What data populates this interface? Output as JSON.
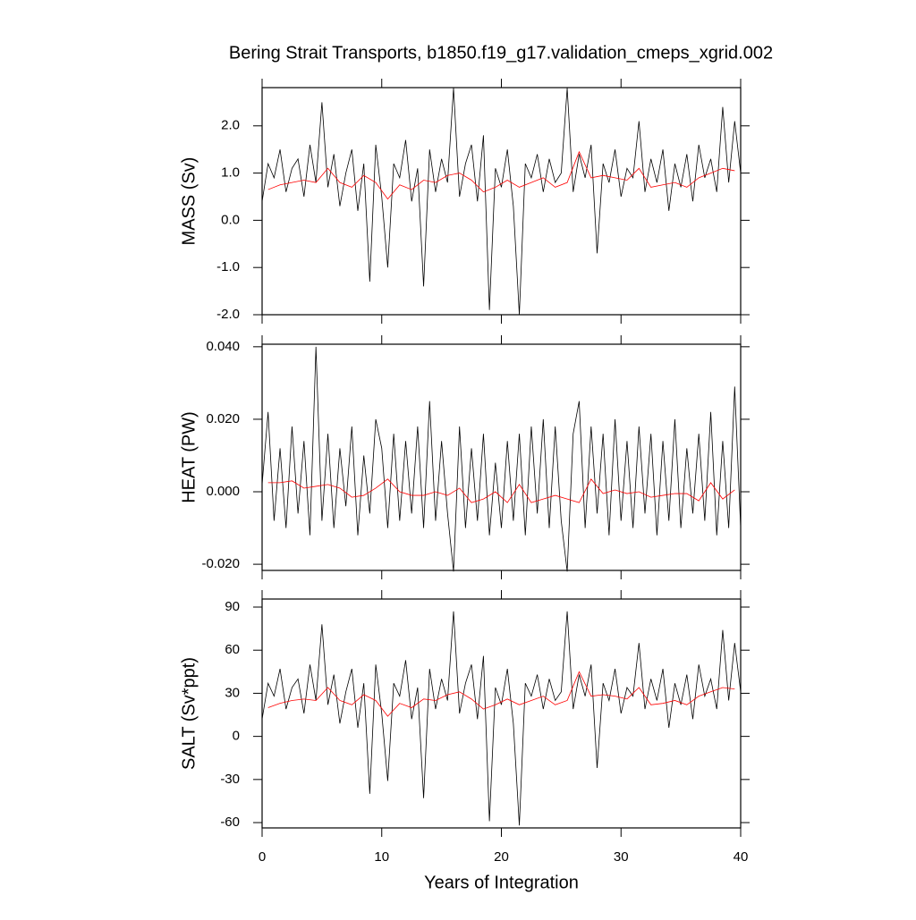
{
  "chart_data": [
    {
      "type": "line",
      "title": "Bering Strait Transports, b1850.f19_g17.validation_cmeps_xgrid.002",
      "y_label": "MASS (Sv)",
      "xlim": [
        0,
        40
      ],
      "xticks": [
        0,
        10,
        20,
        30,
        40
      ],
      "ylim": [
        -2,
        2.81
      ],
      "yticks": [
        {
          "value": 2,
          "label": "2.0"
        },
        {
          "value": 1,
          "label": "1.0"
        },
        {
          "value": 0,
          "label": "0.0"
        },
        {
          "value": -1,
          "label": "-1.0"
        },
        {
          "value": -2,
          "label": "-2.0"
        }
      ],
      "series": [
        {
          "color": "#000000",
          "x": [
            0,
            0.5,
            1,
            1.5,
            2,
            2.5,
            3,
            3.5,
            4,
            4.5,
            5,
            5.5,
            6,
            6.5,
            7,
            7.5,
            8,
            8.5,
            9,
            9.5,
            10,
            10.5,
            11,
            11.5,
            12,
            12.5,
            13,
            13.5,
            14,
            14.5,
            15,
            15.5,
            16,
            16.5,
            17,
            17.5,
            18,
            18.5,
            19,
            19.5,
            20,
            20.5,
            21,
            21.5,
            22,
            22.5,
            23,
            23.5,
            24,
            24.5,
            25,
            25.5,
            26,
            26.5,
            27,
            27.5,
            28,
            28.5,
            29,
            29.5,
            30,
            30.5,
            31,
            31.5,
            32,
            32.5,
            33,
            33.5,
            34,
            34.5,
            35,
            35.5,
            36,
            36.5,
            37,
            37.5,
            38,
            38.5,
            39,
            39.5,
            40
          ],
          "values": [
            0.4,
            1.2,
            0.9,
            1.5,
            0.6,
            1.1,
            1.3,
            0.5,
            1.6,
            0.8,
            2.5,
            0.7,
            1.4,
            0.3,
            1.0,
            1.5,
            0.2,
            1.2,
            -1.3,
            1.6,
            0.5,
            -1.0,
            1.2,
            0.9,
            1.7,
            0.4,
            1.1,
            -1.4,
            1.5,
            0.6,
            1.3,
            0.8,
            2.8,
            0.5,
            1.2,
            1.6,
            0.4,
            1.8,
            -1.9,
            1.1,
            0.7,
            1.5,
            0.3,
            -2.0,
            1.2,
            0.9,
            1.4,
            0.6,
            1.3,
            0.8,
            1.0,
            2.8,
            0.6,
            1.4,
            0.9,
            1.6,
            -0.7,
            1.2,
            0.8,
            1.5,
            0.5,
            1.1,
            0.9,
            2.1,
            0.6,
            1.3,
            0.8,
            1.5,
            0.2,
            1.2,
            0.7,
            1.4,
            0.4,
            1.6,
            0.9,
            1.3,
            0.6,
            2.4,
            0.8,
            2.1,
            1.0
          ]
        },
        {
          "color": "#ff0000",
          "x": [
            0.5,
            1.5,
            2.5,
            3.5,
            4.5,
            5.5,
            6.5,
            7.5,
            8.5,
            9.5,
            10.5,
            11.5,
            12.5,
            13.5,
            14.5,
            15.5,
            16.5,
            17.5,
            18.5,
            19.5,
            20.5,
            21.5,
            22.5,
            23.5,
            24.5,
            25.5,
            26.5,
            27.5,
            28.5,
            29.5,
            30.5,
            31.5,
            32.5,
            33.5,
            34.5,
            35.5,
            36.5,
            37.5,
            38.5,
            39.5
          ],
          "values": [
            0.65,
            0.75,
            0.8,
            0.85,
            0.8,
            1.1,
            0.8,
            0.7,
            0.95,
            0.8,
            0.45,
            0.75,
            0.65,
            0.85,
            0.8,
            0.95,
            1.0,
            0.85,
            0.6,
            0.7,
            0.85,
            0.7,
            0.8,
            0.9,
            0.7,
            0.8,
            1.45,
            0.9,
            0.95,
            0.9,
            0.85,
            1.1,
            0.7,
            0.75,
            0.8,
            0.7,
            0.9,
            1.0,
            1.1,
            1.05
          ]
        }
      ]
    },
    {
      "type": "line",
      "y_label": "HEAT (PW)",
      "xlim": [
        0,
        40
      ],
      "xticks": [
        0,
        10,
        20,
        30,
        40
      ],
      "ylim": [
        -0.0217,
        0.0407
      ],
      "yticks": [
        {
          "value": 0.04,
          "label": "0.040"
        },
        {
          "value": 0.02,
          "label": "0.020"
        },
        {
          "value": 0,
          "label": "0.000"
        },
        {
          "value": -0.02,
          "label": "-0.020"
        }
      ],
      "series": [
        {
          "color": "#000000",
          "x": [
            0,
            0.5,
            1,
            1.5,
            2,
            2.5,
            3,
            3.5,
            4,
            4.5,
            5,
            5.5,
            6,
            6.5,
            7,
            7.5,
            8,
            8.5,
            9,
            9.5,
            10,
            10.5,
            11,
            11.5,
            12,
            12.5,
            13,
            13.5,
            14,
            14.5,
            15,
            15.5,
            16,
            16.5,
            17,
            17.5,
            18,
            18.5,
            19,
            19.5,
            20,
            20.5,
            21,
            21.5,
            22,
            22.5,
            23,
            23.5,
            24,
            24.5,
            25,
            25.5,
            26,
            26.5,
            27,
            27.5,
            28,
            28.5,
            29,
            29.5,
            30,
            30.5,
            31,
            31.5,
            32,
            32.5,
            33,
            33.5,
            34,
            34.5,
            35,
            35.5,
            36,
            36.5,
            37,
            37.5,
            38,
            38.5,
            39,
            39.5,
            40
          ],
          "values": [
            0.002,
            0.022,
            -0.008,
            0.012,
            -0.01,
            0.018,
            -0.006,
            0.014,
            -0.012,
            0.04,
            -0.008,
            0.016,
            -0.01,
            0.012,
            -0.004,
            0.018,
            -0.012,
            0.01,
            -0.006,
            0.02,
            0.012,
            -0.01,
            0.016,
            -0.008,
            0.014,
            -0.006,
            0.018,
            -0.01,
            0.025,
            -0.008,
            0.014,
            -0.006,
            -0.022,
            0.018,
            -0.01,
            0.012,
            -0.008,
            0.016,
            -0.012,
            0.008,
            -0.01,
            0.014,
            -0.008,
            0.016,
            -0.012,
            0.018,
            -0.006,
            0.02,
            -0.01,
            0.018,
            -0.008,
            -0.022,
            0.016,
            0.025,
            -0.01,
            0.018,
            -0.006,
            0.016,
            -0.012,
            0.02,
            -0.008,
            0.014,
            -0.01,
            0.018,
            -0.006,
            0.016,
            -0.012,
            0.014,
            -0.008,
            0.02,
            -0.01,
            0.012,
            -0.006,
            0.016,
            -0.008,
            0.022,
            -0.012,
            0.014,
            -0.01,
            0.029,
            -0.01
          ]
        },
        {
          "color": "#ff0000",
          "x": [
            0.5,
            1.5,
            2.5,
            3.5,
            4.5,
            5.5,
            6.5,
            7.5,
            8.5,
            9.5,
            10.5,
            11.5,
            12.5,
            13.5,
            14.5,
            15.5,
            16.5,
            17.5,
            18.5,
            19.5,
            20.5,
            21.5,
            22.5,
            23.5,
            24.5,
            25.5,
            26.5,
            27.5,
            28.5,
            29.5,
            30.5,
            31.5,
            32.5,
            33.5,
            34.5,
            35.5,
            36.5,
            37.5,
            38.5,
            39.5
          ],
          "values": [
            0.0025,
            0.0025,
            0.003,
            0.001,
            0.0015,
            0.002,
            0.001,
            -0.0015,
            -0.001,
            0.001,
            0.0035,
            0.0,
            -0.001,
            -0.001,
            0.0,
            -0.001,
            0.001,
            -0.003,
            -0.002,
            0.0,
            -0.003,
            0.002,
            -0.003,
            -0.002,
            -0.001,
            -0.002,
            -0.003,
            0.0035,
            -0.0005,
            0.0005,
            -0.0005,
            0.0,
            -0.0015,
            -0.001,
            -0.0005,
            -0.0005,
            -0.0025,
            0.0025,
            -0.002,
            0.0005
          ]
        }
      ]
    },
    {
      "type": "line",
      "y_label": "SALT (Sv*ppt)",
      "x_label": "Years of Integration",
      "xlim": [
        0,
        40
      ],
      "xticks": [
        0,
        10,
        20,
        30,
        40
      ],
      "ylim": [
        -63.7,
        95.6
      ],
      "yticks": [
        90,
        60,
        30,
        0,
        -30,
        -60
      ],
      "series": [
        {
          "color": "#000000",
          "x": [
            0,
            0.5,
            1,
            1.5,
            2,
            2.5,
            3,
            3.5,
            4,
            4.5,
            5,
            5.5,
            6,
            6.5,
            7,
            7.5,
            8,
            8.5,
            9,
            9.5,
            10,
            10.5,
            11,
            11.5,
            12,
            12.5,
            13,
            13.5,
            14,
            14.5,
            15,
            15.5,
            16,
            16.5,
            17,
            17.5,
            18,
            18.5,
            19,
            19.5,
            20,
            20.5,
            21,
            21.5,
            22,
            22.5,
            23,
            23.5,
            24,
            24.5,
            25,
            25.5,
            26,
            26.5,
            27,
            27.5,
            28,
            28.5,
            29,
            29.5,
            30,
            30.5,
            31,
            31.5,
            32,
            32.5,
            33,
            33.5,
            34,
            34.5,
            35,
            35.5,
            36,
            36.5,
            37,
            37.5,
            38,
            38.5,
            39,
            39.5,
            40
          ],
          "values": [
            12,
            37,
            28,
            47,
            19,
            34,
            40,
            16,
            50,
            25,
            78,
            22,
            43,
            9,
            31,
            47,
            6,
            37,
            -40,
            50,
            16,
            -31,
            37,
            28,
            53,
            12,
            34,
            -43,
            47,
            19,
            40,
            25,
            87,
            16,
            37,
            50,
            12,
            56,
            -59,
            34,
            22,
            47,
            9,
            -62,
            37,
            28,
            43,
            19,
            40,
            25,
            31,
            87,
            19,
            43,
            28,
            50,
            -22,
            37,
            25,
            47,
            16,
            34,
            28,
            65,
            19,
            40,
            25,
            47,
            6,
            37,
            22,
            43,
            12,
            50,
            28,
            40,
            19,
            74,
            25,
            65,
            31
          ]
        },
        {
          "color": "#ff0000",
          "x": [
            0.5,
            1.5,
            2.5,
            3.5,
            4.5,
            5.5,
            6.5,
            7.5,
            8.5,
            9.5,
            10.5,
            11.5,
            12.5,
            13.5,
            14.5,
            15.5,
            16.5,
            17.5,
            18.5,
            19.5,
            20.5,
            21.5,
            22.5,
            23.5,
            24.5,
            25.5,
            26.5,
            27.5,
            28.5,
            29.5,
            30.5,
            31.5,
            32.5,
            33.5,
            34.5,
            35.5,
            36.5,
            37.5,
            38.5,
            39.5
          ],
          "values": [
            20,
            23,
            25,
            26,
            25,
            34,
            25,
            22,
            29,
            25,
            14,
            23,
            20,
            26,
            25,
            29,
            31,
            26,
            19,
            22,
            26,
            22,
            25,
            28,
            22,
            25,
            45,
            28,
            29,
            28,
            26,
            34,
            22,
            23,
            25,
            22,
            28,
            31,
            34,
            33
          ]
        }
      ]
    }
  ]
}
